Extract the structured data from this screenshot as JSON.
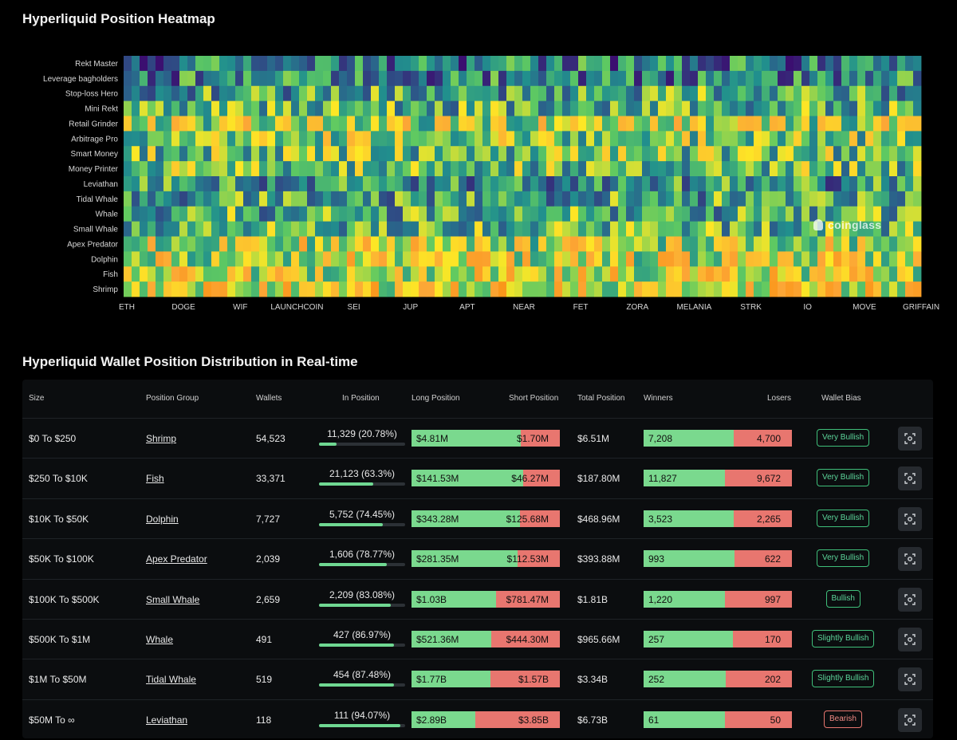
{
  "heatmap": {
    "title": "Hyperliquid Position Heatmap",
    "watermark": "coinglass",
    "rows": [
      "Rekt Master",
      "Leverage bagholders",
      "Stop-loss Hero",
      "Mini Rekt",
      "Retail Grinder",
      "Arbitrage Pro",
      "Smart Money",
      "Money Printer",
      "Leviathan",
      "Tidal Whale",
      "Whale",
      "Small Whale",
      "Apex Predator",
      "Dolphin",
      "Fish",
      "Shrimp"
    ],
    "x_tick_labels": [
      "ETH",
      "DOGE",
      "WIF",
      "LAUNCHCOIN",
      "SEI",
      "JUP",
      "APT",
      "NEAR",
      "FET",
      "ZORA",
      "MELANIA",
      "STRK",
      "IO",
      "MOVE",
      "GRIFFAIN"
    ],
    "column_count": 100
  },
  "chart_data": {
    "type": "heatmap",
    "title": "Hyperliquid Position Heatmap",
    "y_categories": [
      "Rekt Master",
      "Leverage bagholders",
      "Stop-loss Hero",
      "Mini Rekt",
      "Retail Grinder",
      "Arbitrage Pro",
      "Smart Money",
      "Money Printer",
      "Leviathan",
      "Tidal Whale",
      "Whale",
      "Small Whale",
      "Apex Predator",
      "Dolphin",
      "Fish",
      "Shrimp"
    ],
    "x_tick_labels": [
      "ETH",
      "DOGE",
      "WIF",
      "LAUNCHCOIN",
      "SEI",
      "JUP",
      "APT",
      "NEAR",
      "FET",
      "ZORA",
      "MELANIA",
      "STRK",
      "IO",
      "MOVE",
      "GRIFFAIN"
    ],
    "colorscale": [
      "#3b0f70",
      "#2c5c8a",
      "#21908d",
      "#5ec962",
      "#fde725",
      "#fca636",
      "#f98e09"
    ],
    "legend": "none"
  },
  "table": {
    "title": "Hyperliquid Wallet Position Distribution in Real-time",
    "headers": {
      "size": "Size",
      "group": "Position Group",
      "wallets": "Wallets",
      "in_position": "In Position",
      "long": "Long Position",
      "short": "Short Position",
      "total": "Total Position",
      "winners": "Winners",
      "losers": "Losers",
      "bias": "Wallet Bias"
    },
    "colors": {
      "long": "#7ad98e",
      "short": "#e8766f",
      "bullish": "#5cd59a",
      "bearish": "#f08a84"
    },
    "rows": [
      {
        "size": "$0 To $250",
        "group": "Shrimp",
        "wallets": "54,523",
        "in_position": "11,329 (20.78%)",
        "in_pct": 20.78,
        "long": "$4.81M",
        "short": "$1.70M",
        "long_frac": 0.739,
        "total": "$6.51M",
        "winners": "7,208",
        "losers": "4,700",
        "win_frac": 0.605,
        "bias": "Very Bullish",
        "bearish": false
      },
      {
        "size": "$250 To $10K",
        "group": "Fish",
        "wallets": "33,371",
        "in_position": "21,123 (63.3%)",
        "in_pct": 63.3,
        "long": "$141.53M",
        "short": "$46.27M",
        "long_frac": 0.754,
        "total": "$187.80M",
        "winners": "11,827",
        "losers": "9,672",
        "win_frac": 0.55,
        "bias": "Very Bullish",
        "bearish": false
      },
      {
        "size": "$10K To $50K",
        "group": "Dolphin",
        "wallets": "7,727",
        "in_position": "5,752 (74.45%)",
        "in_pct": 74.45,
        "long": "$343.28M",
        "short": "$125.68M",
        "long_frac": 0.732,
        "total": "$468.96M",
        "winners": "3,523",
        "losers": "2,265",
        "win_frac": 0.609,
        "bias": "Very Bullish",
        "bearish": false
      },
      {
        "size": "$50K To $100K",
        "group": "Apex Predator",
        "wallets": "2,039",
        "in_position": "1,606 (78.77%)",
        "in_pct": 78.77,
        "long": "$281.35M",
        "short": "$112.53M",
        "long_frac": 0.714,
        "total": "$393.88M",
        "winners": "993",
        "losers": "622",
        "win_frac": 0.615,
        "bias": "Very Bullish",
        "bearish": false
      },
      {
        "size": "$100K To $500K",
        "group": "Small Whale",
        "wallets": "2,659",
        "in_position": "2,209 (83.08%)",
        "in_pct": 83.08,
        "long": "$1.03B",
        "short": "$781.47M",
        "long_frac": 0.569,
        "total": "$1.81B",
        "winners": "1,220",
        "losers": "997",
        "win_frac": 0.55,
        "bias": "Bullish",
        "bearish": false
      },
      {
        "size": "$500K To $1M",
        "group": "Whale",
        "wallets": "491",
        "in_position": "427 (86.97%)",
        "in_pct": 86.97,
        "long": "$521.36M",
        "short": "$444.30M",
        "long_frac": 0.54,
        "total": "$965.66M",
        "winners": "257",
        "losers": "170",
        "win_frac": 0.602,
        "bias": "Slightly Bullish",
        "bearish": false
      },
      {
        "size": "$1M To $50M",
        "group": "Tidal Whale",
        "wallets": "519",
        "in_position": "454 (87.48%)",
        "in_pct": 87.48,
        "long": "$1.77B",
        "short": "$1.57B",
        "long_frac": 0.53,
        "total": "$3.34B",
        "winners": "252",
        "losers": "202",
        "win_frac": 0.555,
        "bias": "Slightly Bullish",
        "bearish": false
      },
      {
        "size": "$50M To ∞",
        "group": "Leviathan",
        "wallets": "118",
        "in_position": "111 (94.07%)",
        "in_pct": 94.07,
        "long": "$2.89B",
        "short": "$3.85B",
        "long_frac": 0.429,
        "total": "$6.73B",
        "winners": "61",
        "losers": "50",
        "win_frac": 0.55,
        "bias": "Bearish",
        "bearish": true
      }
    ]
  }
}
